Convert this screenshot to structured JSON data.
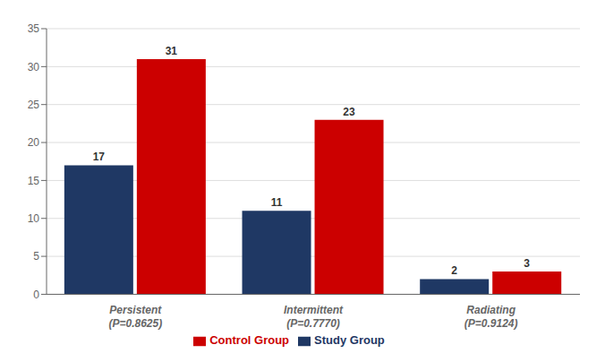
{
  "chart_data": {
    "type": "bar",
    "categories": [
      "Persistent\n(P=0.8625)",
      "Intermittent\n(P=0.7770)",
      "Radiating\n(P=0.9124)"
    ],
    "series": [
      {
        "name": "Study Group",
        "color": "#1f3864",
        "values": [
          17,
          11,
          2
        ]
      },
      {
        "name": "Control Group",
        "color": "#cc0000",
        "values": [
          31,
          23,
          3
        ]
      }
    ],
    "ylim": [
      0,
      35
    ],
    "yticks": [
      0,
      5,
      10,
      15,
      20,
      25,
      30,
      35
    ],
    "grid": true,
    "legend": "bottom",
    "data_labels": true
  }
}
